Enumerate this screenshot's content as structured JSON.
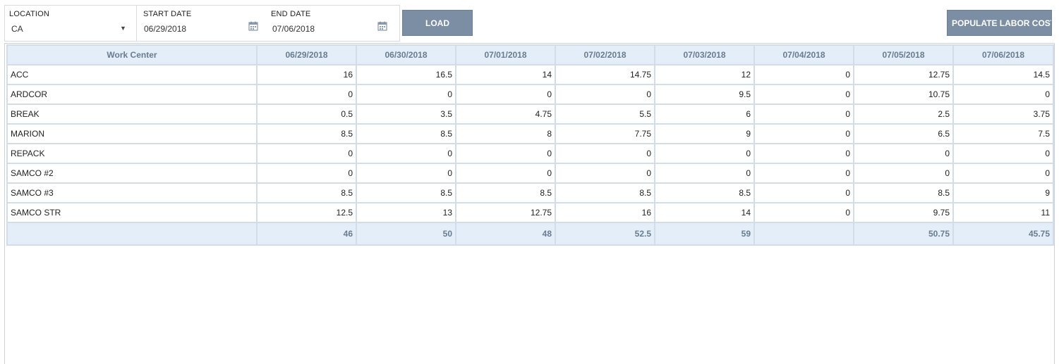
{
  "filters": {
    "location_label": "LOCATION",
    "location_value": "CA",
    "start_label": "START DATE",
    "start_value": "06/29/2018",
    "end_label": "END DATE",
    "end_value": "07/06/2018"
  },
  "buttons": {
    "load": "LOAD",
    "populate": "POPULATE LABOR COST"
  },
  "icons": {
    "dropdown": "chevron-down-icon",
    "calendar": "calendar-icon"
  },
  "colors": {
    "button_bg": "#7b8ea4",
    "header_bg": "#e3eef9",
    "header_text": "#6a7b8e",
    "grid_border": "#d3dde8"
  },
  "grid": {
    "columns": [
      "Work Center",
      "06/29/2018",
      "06/30/2018",
      "07/01/2018",
      "07/02/2018",
      "07/03/2018",
      "07/04/2018",
      "07/05/2018",
      "07/06/2018"
    ],
    "rows": [
      [
        "ACC",
        "16",
        "16.5",
        "14",
        "14.75",
        "12",
        "0",
        "12.75",
        "14.5"
      ],
      [
        "ARDCOR",
        "0",
        "0",
        "0",
        "0",
        "9.5",
        "0",
        "10.75",
        "0"
      ],
      [
        "BREAK",
        "0.5",
        "3.5",
        "4.75",
        "5.5",
        "6",
        "0",
        "2.5",
        "3.75"
      ],
      [
        "MARION",
        "8.5",
        "8.5",
        "8",
        "7.75",
        "9",
        "0",
        "6.5",
        "7.5"
      ],
      [
        "REPACK",
        "0",
        "0",
        "0",
        "0",
        "0",
        "0",
        "0",
        "0"
      ],
      [
        "SAMCO #2",
        "0",
        "0",
        "0",
        "0",
        "0",
        "0",
        "0",
        "0"
      ],
      [
        "SAMCO #3",
        "8.5",
        "8.5",
        "8.5",
        "8.5",
        "8.5",
        "0",
        "8.5",
        "9"
      ],
      [
        "SAMCO STR",
        "12.5",
        "13",
        "12.75",
        "16",
        "14",
        "0",
        "9.75",
        "11"
      ]
    ],
    "totals": [
      "",
      "46",
      "50",
      "48",
      "52.5",
      "59",
      "",
      "50.75",
      "45.75"
    ]
  }
}
